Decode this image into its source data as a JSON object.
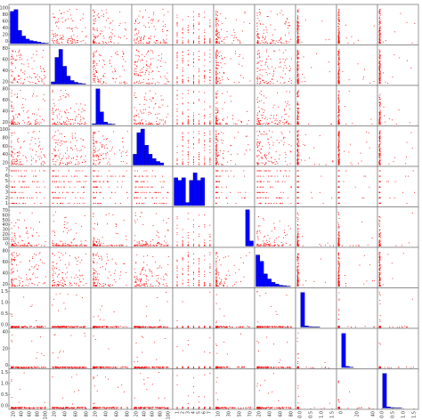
{
  "chart_data": {
    "type": "scatter-matrix",
    "variables": 10,
    "diagonal": "histogram",
    "colors": {
      "scatter": "#ff0000",
      "histogram_fill": "#0000ff",
      "histogram_edge": "#000080",
      "frame": "#7f7f7f"
    },
    "y_ticks": [
      {
        "row": 0,
        "labels": [
          "100",
          "80",
          "60",
          "40",
          "20",
          "0"
        ]
      },
      {
        "row": 1,
        "labels": [
          "80",
          "60",
          "40",
          "20"
        ]
      },
      {
        "row": 2,
        "labels": [
          "80",
          "60",
          "40",
          "20"
        ]
      },
      {
        "row": 3,
        "labels": [
          "100",
          "80",
          "60",
          "40",
          "20"
        ]
      },
      {
        "row": 4,
        "labels": [
          "7",
          "6",
          "5",
          "4",
          "3",
          "2",
          "1"
        ]
      },
      {
        "row": 5,
        "labels": [
          "70",
          "60",
          "50",
          "40",
          "30",
          "20",
          "10",
          "0"
        ]
      },
      {
        "row": 6,
        "labels": [
          "80",
          "60",
          "40",
          "20"
        ]
      },
      {
        "row": 7,
        "labels": [
          "1.5",
          "1.0",
          "0.5",
          "0.0"
        ]
      },
      {
        "row": 8,
        "labels": [
          "40",
          "20",
          "0"
        ]
      },
      {
        "row": 9,
        "labels": [
          "1.5",
          "1.0",
          "0.5",
          "0.0"
        ]
      }
    ],
    "x_ticks": [
      {
        "col": 0,
        "labels": [
          "20",
          "40",
          "60",
          "80",
          "100"
        ]
      },
      {
        "col": 1,
        "labels": [
          "20",
          "40",
          "60",
          "80"
        ]
      },
      {
        "col": 2,
        "labels": [
          "20",
          "40",
          "60",
          "80"
        ]
      },
      {
        "col": 3,
        "labels": [
          "20",
          "40",
          "60",
          "80",
          "100"
        ]
      },
      {
        "col": 4,
        "labels": [
          "1",
          "2",
          "3",
          "4",
          "5",
          "6",
          "7"
        ]
      },
      {
        "col": 5,
        "labels": [
          "10",
          "30",
          "50",
          "70"
        ]
      },
      {
        "col": 6,
        "labels": [
          "20",
          "40",
          "60",
          "80"
        ]
      },
      {
        "col": 7,
        "labels": [
          "0.0",
          "0.5",
          "1.0",
          "1.5"
        ]
      },
      {
        "col": 8,
        "labels": [
          "0",
          "20",
          "40"
        ]
      },
      {
        "col": 9,
        "labels": [
          "0.0",
          "0.5",
          "1.0",
          "1.5"
        ]
      }
    ],
    "histograms": [
      {
        "index": 0,
        "x_range": [
          0,
          100
        ],
        "y_max": 100,
        "bin_counts": [
          85,
          90,
          35,
          20,
          12,
          8,
          6,
          4,
          2,
          1
        ]
      },
      {
        "index": 1,
        "x_range": [
          0,
          80
        ],
        "y_max": 85,
        "bin_counts": [
          5,
          60,
          78,
          40,
          18,
          8,
          4,
          2,
          1,
          0
        ]
      },
      {
        "index": 2,
        "x_range": [
          0,
          80
        ],
        "y_max": 90,
        "bin_counts": [
          2,
          85,
          30,
          6,
          2,
          1,
          0,
          0,
          0,
          0
        ]
      },
      {
        "index": 3,
        "x_range": [
          0,
          100
        ],
        "y_max": 105,
        "bin_counts": [
          30,
          90,
          100,
          55,
          30,
          18,
          10,
          6,
          0,
          0
        ]
      },
      {
        "index": 4,
        "x_range": [
          1,
          7
        ],
        "y_max": 7.5,
        "bin_counts": [
          5.5,
          5.0,
          5.5,
          0.6,
          5.0,
          6.5,
          5.0,
          5.5,
          0,
          0
        ]
      },
      {
        "index": 5,
        "x_range": [
          0,
          75
        ],
        "y_max": 75,
        "bin_counts": [
          0,
          0,
          0,
          0,
          0,
          0,
          0,
          0,
          72,
          10
        ]
      },
      {
        "index": 6,
        "x_range": [
          0,
          90
        ],
        "y_max": 90,
        "bin_counts": [
          75,
          60,
          30,
          18,
          10,
          6,
          3,
          2,
          1,
          0
        ]
      },
      {
        "index": 7,
        "x_range": [
          0,
          1.7
        ],
        "y_max": 1.7,
        "bin_counts": [
          0,
          1.55,
          0.05,
          0.02,
          0.01,
          0.01,
          0,
          0,
          0,
          0
        ]
      },
      {
        "index": 8,
        "x_range": [
          0,
          50
        ],
        "y_max": 50,
        "bin_counts": [
          0,
          45,
          1.5,
          0.5,
          0,
          0,
          0,
          0,
          0,
          0
        ]
      },
      {
        "index": 9,
        "x_range": [
          0,
          1.7
        ],
        "y_max": 1.7,
        "bin_counts": [
          0,
          1.55,
          0.05,
          0.02,
          0.01,
          0.01,
          0,
          0,
          0,
          0
        ]
      }
    ]
  }
}
